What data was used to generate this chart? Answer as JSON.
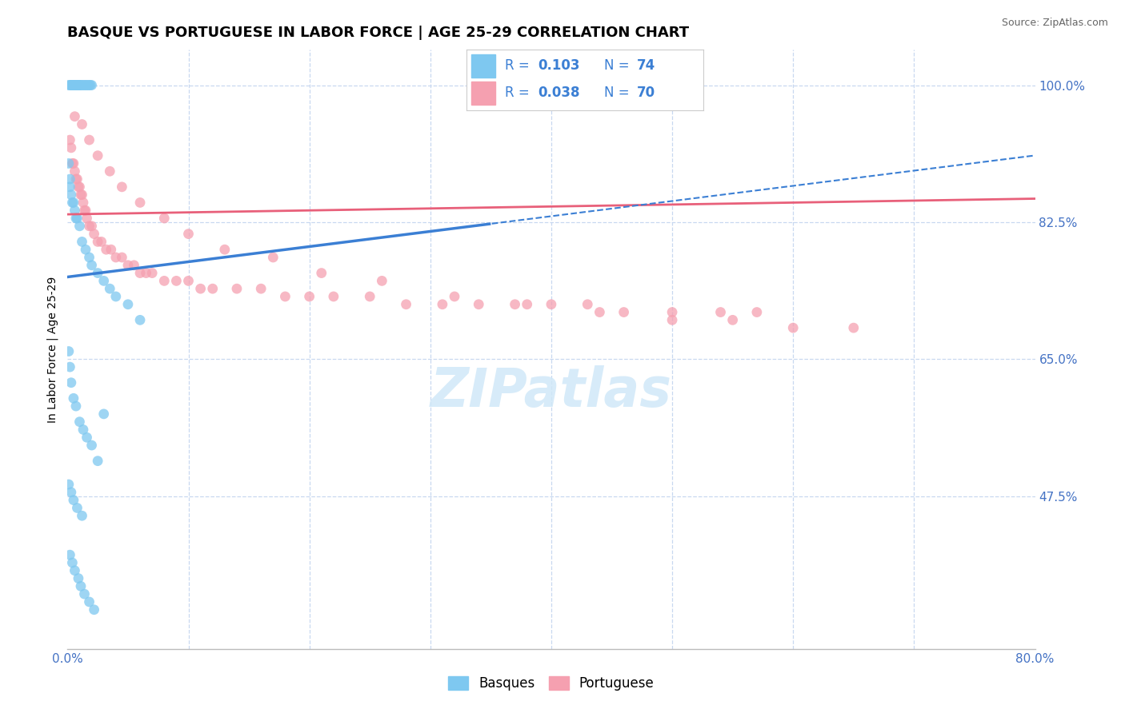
{
  "title": "BASQUE VS PORTUGUESE IN LABOR FORCE | AGE 25-29 CORRELATION CHART",
  "source_text": "Source: ZipAtlas.com",
  "ylabel": "In Labor Force | Age 25-29",
  "xlim": [
    0.0,
    0.8
  ],
  "ylim": [
    0.28,
    1.045
  ],
  "ytick_positions": [
    0.475,
    0.65,
    0.825,
    1.0
  ],
  "ytick_labels": [
    "47.5%",
    "65.0%",
    "82.5%",
    "100.0%"
  ],
  "basque_color": "#7ec8f0",
  "portuguese_color": "#f5a0b0",
  "blue_line_color": "#3b7fd4",
  "pink_line_color": "#e8607a",
  "watermark_color": "#d0e8f8",
  "grid_color": "#c8d8f0",
  "bg_color": "#ffffff",
  "title_fontsize": 13,
  "axis_label_fontsize": 10,
  "tick_fontsize": 11,
  "source_fontsize": 9,
  "legend_R_blue": "0.103",
  "legend_N_blue": "74",
  "legend_R_pink": "0.038",
  "legend_N_pink": "70",
  "blue_line_solid_end": 0.35,
  "basque_x": [
    0.001,
    0.002,
    0.003,
    0.003,
    0.004,
    0.004,
    0.005,
    0.005,
    0.005,
    0.006,
    0.006,
    0.006,
    0.007,
    0.007,
    0.008,
    0.008,
    0.009,
    0.009,
    0.01,
    0.01,
    0.011,
    0.012,
    0.013,
    0.014,
    0.015,
    0.016,
    0.017,
    0.018,
    0.019,
    0.02,
    0.001,
    0.002,
    0.002,
    0.003,
    0.004,
    0.005,
    0.006,
    0.007,
    0.008,
    0.01,
    0.012,
    0.015,
    0.018,
    0.02,
    0.025,
    0.03,
    0.035,
    0.04,
    0.05,
    0.06,
    0.001,
    0.002,
    0.003,
    0.005,
    0.007,
    0.01,
    0.013,
    0.016,
    0.02,
    0.025,
    0.001,
    0.003,
    0.005,
    0.008,
    0.012,
    0.002,
    0.004,
    0.006,
    0.009,
    0.011,
    0.014,
    0.018,
    0.022,
    0.03
  ],
  "basque_y": [
    1.0,
    1.0,
    1.0,
    1.0,
    1.0,
    1.0,
    1.0,
    1.0,
    1.0,
    1.0,
    1.0,
    1.0,
    1.0,
    1.0,
    1.0,
    1.0,
    1.0,
    1.0,
    1.0,
    1.0,
    1.0,
    1.0,
    1.0,
    1.0,
    1.0,
    1.0,
    1.0,
    1.0,
    1.0,
    1.0,
    0.9,
    0.88,
    0.87,
    0.86,
    0.85,
    0.85,
    0.84,
    0.83,
    0.83,
    0.82,
    0.8,
    0.79,
    0.78,
    0.77,
    0.76,
    0.75,
    0.74,
    0.73,
    0.72,
    0.7,
    0.66,
    0.64,
    0.62,
    0.6,
    0.59,
    0.57,
    0.56,
    0.55,
    0.54,
    0.52,
    0.49,
    0.48,
    0.47,
    0.46,
    0.45,
    0.4,
    0.39,
    0.38,
    0.37,
    0.36,
    0.35,
    0.34,
    0.33,
    0.58
  ],
  "portuguese_x": [
    0.002,
    0.003,
    0.004,
    0.005,
    0.006,
    0.007,
    0.008,
    0.009,
    0.01,
    0.011,
    0.012,
    0.013,
    0.014,
    0.015,
    0.016,
    0.018,
    0.02,
    0.022,
    0.025,
    0.028,
    0.032,
    0.036,
    0.04,
    0.045,
    0.05,
    0.055,
    0.06,
    0.065,
    0.07,
    0.08,
    0.09,
    0.1,
    0.11,
    0.12,
    0.14,
    0.16,
    0.18,
    0.2,
    0.22,
    0.25,
    0.28,
    0.31,
    0.34,
    0.37,
    0.4,
    0.43,
    0.46,
    0.5,
    0.54,
    0.57,
    0.006,
    0.012,
    0.018,
    0.025,
    0.035,
    0.045,
    0.06,
    0.08,
    0.1,
    0.13,
    0.17,
    0.21,
    0.26,
    0.32,
    0.38,
    0.44,
    0.5,
    0.55,
    0.6,
    0.65
  ],
  "portuguese_y": [
    0.93,
    0.92,
    0.9,
    0.9,
    0.89,
    0.88,
    0.88,
    0.87,
    0.87,
    0.86,
    0.86,
    0.85,
    0.84,
    0.84,
    0.83,
    0.82,
    0.82,
    0.81,
    0.8,
    0.8,
    0.79,
    0.79,
    0.78,
    0.78,
    0.77,
    0.77,
    0.76,
    0.76,
    0.76,
    0.75,
    0.75,
    0.75,
    0.74,
    0.74,
    0.74,
    0.74,
    0.73,
    0.73,
    0.73,
    0.73,
    0.72,
    0.72,
    0.72,
    0.72,
    0.72,
    0.72,
    0.71,
    0.71,
    0.71,
    0.71,
    0.96,
    0.95,
    0.93,
    0.91,
    0.89,
    0.87,
    0.85,
    0.83,
    0.81,
    0.79,
    0.78,
    0.76,
    0.75,
    0.73,
    0.72,
    0.71,
    0.7,
    0.7,
    0.69,
    0.69
  ]
}
